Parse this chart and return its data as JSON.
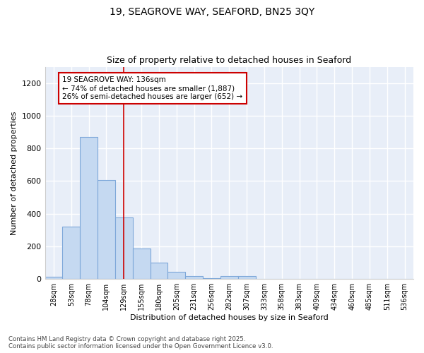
{
  "title1": "19, SEAGROVE WAY, SEAFORD, BN25 3QY",
  "title2": "Size of property relative to detached houses in Seaford",
  "xlabel": "Distribution of detached houses by size in Seaford",
  "ylabel": "Number of detached properties",
  "bar_labels": [
    "28sqm",
    "53sqm",
    "78sqm",
    "104sqm",
    "129sqm",
    "155sqm",
    "180sqm",
    "205sqm",
    "231sqm",
    "256sqm",
    "282sqm",
    "307sqm",
    "333sqm",
    "358sqm",
    "383sqm",
    "409sqm",
    "434sqm",
    "460sqm",
    "485sqm",
    "511sqm",
    "536sqm"
  ],
  "bar_values": [
    13,
    320,
    870,
    605,
    375,
    185,
    100,
    45,
    18,
    5,
    18,
    20,
    0,
    0,
    0,
    0,
    0,
    0,
    0,
    0,
    0
  ],
  "bar_color": "#c5d9f1",
  "bar_edge_color": "#7da7d9",
  "vline_x_index": 4,
  "vline_color": "#cc0000",
  "annotation_text": "19 SEAGROVE WAY: 136sqm\n← 74% of detached houses are smaller (1,887)\n26% of semi-detached houses are larger (652) →",
  "annotation_box_color": "#ffffff",
  "annotation_box_edge": "#cc0000",
  "ylim": [
    0,
    1300
  ],
  "yticks": [
    0,
    200,
    400,
    600,
    800,
    1000,
    1200
  ],
  "plot_bg_color": "#e8eef8",
  "fig_bg_color": "#ffffff",
  "grid_color": "#ffffff",
  "footer1": "Contains HM Land Registry data © Crown copyright and database right 2025.",
  "footer2": "Contains public sector information licensed under the Open Government Licence v3.0."
}
